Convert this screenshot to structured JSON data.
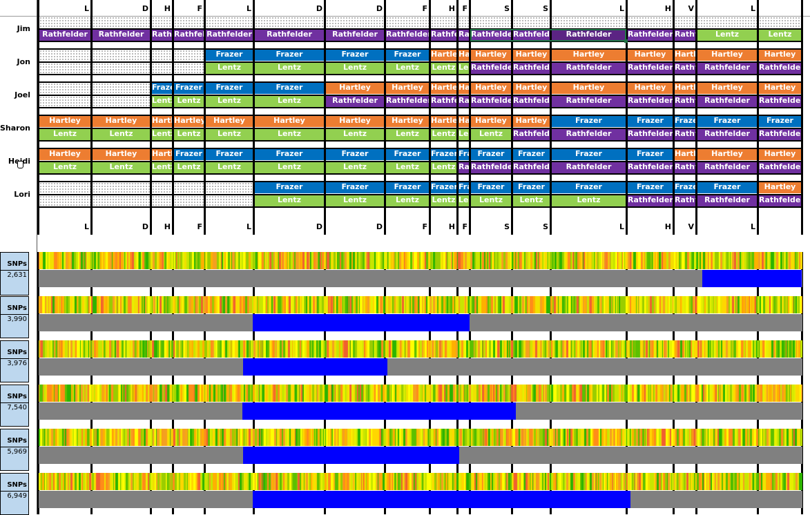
{
  "colors": {
    "Rathfelder": "#7030A0",
    "Frazer": "#0070C0",
    "Hartley": "#ED7D31",
    "Lentz": "#92D050",
    "snp_label_bg": "#BDD7EE",
    "highlight": "#0000FF",
    "track": "#808080",
    "selection": "#217346"
  },
  "column_headers": [
    "L",
    "D",
    "H",
    "F",
    "L",
    "D",
    "D",
    "F",
    "H",
    "F",
    "S",
    "S",
    "L",
    "H",
    "V",
    "L",
    ""
  ],
  "people": [
    {
      "name": "Jim",
      "rows": [
        [
          "",
          "",
          "",
          "",
          "",
          "",
          "",
          "",
          "",
          "",
          "",
          "",
          "",
          "",
          "",
          "",
          ""
        ],
        [
          "Rathfelder",
          "Rathfelder",
          "Rathfelder",
          "Rathfelder",
          "Rathfelder",
          "Rathfelder",
          "Rathfelder",
          "Rathfelder",
          "Rathfelder",
          "Rathfelder",
          "Rathfelder",
          "Rathfelder",
          "Rathfelder",
          "Rathfelder",
          "Rathfelder",
          "Lentz",
          "Lentz"
        ]
      ]
    },
    {
      "name": "Jon",
      "rows": [
        [
          "",
          "",
          "",
          "",
          "Frazer",
          "Frazer",
          "Frazer",
          "Frazer",
          "Hartley",
          "Hartley",
          "Hartley",
          "Hartley",
          "Hartley",
          "Hartley",
          "Hartley",
          "Hartley",
          "Hartley"
        ],
        [
          "",
          "",
          "",
          "",
          "Lentz",
          "Lentz",
          "Lentz",
          "Lentz",
          "Lentz",
          "Lentz",
          "Rathfelder",
          "Rathfelder",
          "Rathfelder",
          "Rathfelder",
          "Rathfelder",
          "Rathfelder",
          "Rathfelder"
        ]
      ]
    },
    {
      "name": "Joel",
      "rows": [
        [
          "",
          "",
          "Frazer",
          "Frazer",
          "Frazer",
          "Frazer",
          "Hartley",
          "Hartley",
          "Hartley",
          "Hartley",
          "Hartley",
          "Hartley",
          "Hartley",
          "Hartley",
          "Hartley",
          "Hartley",
          "Hartley"
        ],
        [
          "",
          "",
          "Lentz",
          "Lentz",
          "Lentz",
          "Lentz",
          "Rathfelder",
          "Rathfelder",
          "Rathfelder",
          "Rathfelder",
          "Rathfelder",
          "Rathfelder",
          "Rathfelder",
          "Rathfelder",
          "Rathfelder",
          "Rathfelder",
          "Rathfelder"
        ]
      ]
    },
    {
      "name": "Sharon",
      "rows": [
        [
          "Hartley",
          "Hartley",
          "Hartley",
          "Hartley",
          "Hartley",
          "Hartley",
          "Hartley",
          "Hartley",
          "Hartley",
          "Hartley",
          "Hartley",
          "Hartley",
          "Frazer",
          "Frazer",
          "Frazer",
          "Frazer",
          "Frazer"
        ],
        [
          "Lentz",
          "Lentz",
          "Lentz",
          "Lentz",
          "Lentz",
          "Lentz",
          "Lentz",
          "Lentz",
          "Lentz",
          "Lentz",
          "Lentz",
          "Rathfelder",
          "Rathfelder",
          "Rathfelder",
          "Rathfelder",
          "Rathfelder",
          "Rathfelder"
        ]
      ]
    },
    {
      "name": "Heidi",
      "rows": [
        [
          "Hartley",
          "Hartley",
          "Hartley",
          "Frazer",
          "Frazer",
          "Frazer",
          "Frazer",
          "Frazer",
          "Frazer",
          "Frazer",
          "Frazer",
          "Frazer",
          "Frazer",
          "Frazer",
          "Hartley",
          "Hartley",
          "Hartley"
        ],
        [
          "Lentz",
          "Lentz",
          "Lentz",
          "Lentz",
          "Lentz",
          "Lentz",
          "Lentz",
          "Lentz",
          "Lentz",
          "Rathfelder",
          "Rathfelder",
          "Rathfelder",
          "Rathfelder",
          "Rathfelder",
          "Rathfelder",
          "Rathfelder",
          "Rathfelder"
        ]
      ]
    },
    {
      "name": "Lori",
      "rows": [
        [
          "",
          "",
          "",
          "",
          "",
          "Frazer",
          "Frazer",
          "Frazer",
          "Frazer",
          "Frazer",
          "Frazer",
          "Frazer",
          "Frazer",
          "Frazer",
          "Frazer",
          "Frazer",
          "Hartley"
        ],
        [
          "",
          "",
          "",
          "",
          "",
          "Lentz",
          "Lentz",
          "Lentz",
          "Lentz",
          "Lentz",
          "Lentz",
          "Lentz",
          "Lentz",
          "Rathfelder",
          "Rathfelder",
          "Rathfelder",
          "Rathfelder"
        ]
      ]
    }
  ],
  "snp_tracks": [
    {
      "label": "SNPs",
      "count": "2,631"
    },
    {
      "label": "SNPs",
      "count": "3,990"
    },
    {
      "label": "SNPs",
      "count": "3,976"
    },
    {
      "label": "SNPs",
      "count": "7,540"
    },
    {
      "label": "SNPs",
      "count": "5,969"
    },
    {
      "label": "SNPs",
      "count": "6,949"
    }
  ]
}
